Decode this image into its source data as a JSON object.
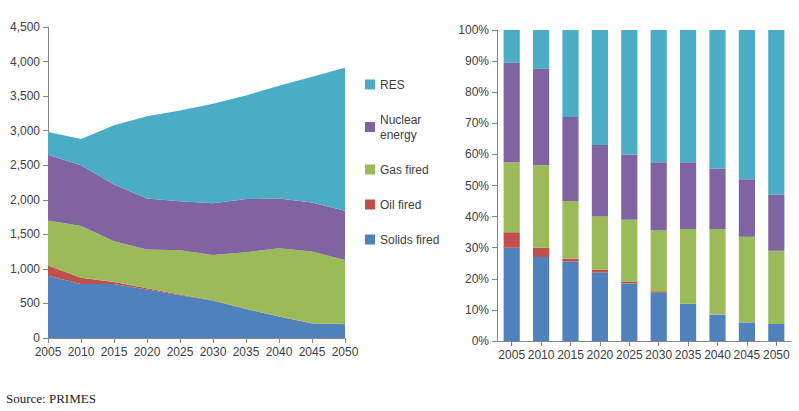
{
  "caption": "Source: PRIMES",
  "chart_data": [
    {
      "type": "area",
      "stacked": true,
      "grid": false,
      "legend": "right",
      "categories": [
        "2005",
        "2010",
        "2015",
        "2020",
        "2025",
        "2030",
        "2035",
        "2040",
        "2045",
        "2050"
      ],
      "ylim": [
        0,
        4500
      ],
      "yticks": [
        0,
        500,
        {
          "value": 1000,
          "label": "1,000"
        },
        {
          "value": 1500,
          "label": "1,500"
        },
        {
          "value": 2000,
          "label": "2,000"
        },
        {
          "value": 2500,
          "label": "2,500"
        },
        {
          "value": 3000,
          "label": "3,000"
        },
        {
          "value": 3500,
          "label": "3,500"
        },
        {
          "value": 4000,
          "label": "4,000"
        },
        {
          "value": 4500,
          "label": "4,500"
        }
      ],
      "series": [
        {
          "name": "Solids fired",
          "color": "#4f81bd",
          "values": [
            900,
            780,
            780,
            700,
            620,
            540,
            420,
            310,
            210,
            200
          ]
        },
        {
          "name": "Oil fired",
          "color": "#c0504d",
          "values": [
            150,
            90,
            30,
            20,
            10,
            5,
            3,
            2,
            2,
            2
          ]
        },
        {
          "name": "Gas fired",
          "color": "#9bbb59",
          "values": [
            650,
            750,
            590,
            560,
            640,
            655,
            817,
            988,
            1038,
            928
          ]
        },
        {
          "name": "Nuclear energy",
          "color": "#8064a2",
          "values": [
            950,
            880,
            820,
            740,
            710,
            750,
            770,
            720,
            710,
            710
          ]
        },
        {
          "name": "RES",
          "color": "#4bacc6",
          "values": [
            330,
            380,
            860,
            1190,
            1310,
            1440,
            1500,
            1630,
            1820,
            2070
          ]
        }
      ]
    },
    {
      "type": "bar",
      "stacked": true,
      "grid": false,
      "categories": [
        "2005",
        "2010",
        "2015",
        "2020",
        "2025",
        "2030",
        "2035",
        "2040",
        "2045",
        "2050"
      ],
      "ylim": [
        0,
        100
      ],
      "yticks": [
        {
          "value": 0,
          "label": "0%"
        },
        {
          "value": 10,
          "label": "10%"
        },
        {
          "value": 20,
          "label": "20%"
        },
        {
          "value": 30,
          "label": "30%"
        },
        {
          "value": 40,
          "label": "40%"
        },
        {
          "value": 50,
          "label": "50%"
        },
        {
          "value": 60,
          "label": "60%"
        },
        {
          "value": 70,
          "label": "70%"
        },
        {
          "value": 80,
          "label": "80%"
        },
        {
          "value": 90,
          "label": "90%"
        },
        {
          "value": 100,
          "label": "100%"
        }
      ],
      "series": [
        {
          "color": "#4f81bd",
          "values": [
            30,
            27,
            25.5,
            22,
            18.5,
            15.5,
            12,
            8.5,
            6,
            5.5
          ]
        },
        {
          "color": "#c0504d",
          "values": [
            5,
            3,
            1,
            1,
            0.5,
            0.5,
            0,
            0,
            0,
            0
          ]
        },
        {
          "color": "#9bbb59",
          "values": [
            22.5,
            26.5,
            18.5,
            17,
            20,
            19.5,
            24,
            27.5,
            27.5,
            23.5
          ]
        },
        {
          "color": "#8064a2",
          "values": [
            32,
            31,
            27,
            23,
            21,
            22,
            21.5,
            19.5,
            18.5,
            18
          ]
        },
        {
          "color": "#4bacc6",
          "values": [
            10.5,
            12.5,
            28,
            37,
            40,
            42.5,
            42.5,
            44.5,
            48,
            53
          ]
        }
      ]
    }
  ]
}
